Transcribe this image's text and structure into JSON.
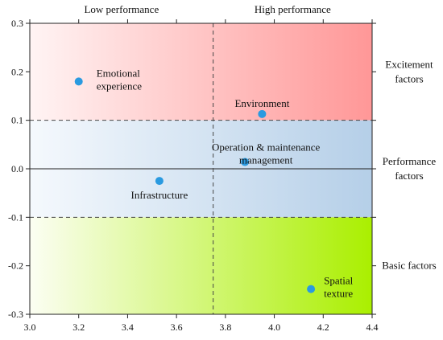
{
  "chart_data": {
    "type": "scatter",
    "title": "",
    "xlabel": "",
    "ylabel": "",
    "xlim": [
      3.0,
      4.4
    ],
    "ylim": [
      -0.3,
      0.3
    ],
    "x_ticks": [
      "3.0",
      "3.2",
      "3.4",
      "3.6",
      "3.8",
      "4.0",
      "4.2",
      "4.4"
    ],
    "y_ticks": [
      "0.3",
      "0.2",
      "0.1",
      "0.0",
      "-0.1",
      "-0.2",
      "-0.3"
    ],
    "x_divider": 3.75,
    "y_dividers": [
      0.1,
      -0.1
    ],
    "column_labels": [
      "Low performance",
      "High performance"
    ],
    "region_labels": [
      [
        "Excitement",
        "factors"
      ],
      [
        "Performance",
        "factors"
      ],
      [
        "Basic factors"
      ]
    ],
    "colors": {
      "point": "#2a9ae0",
      "excitement_low": "#fff4f4",
      "excitement_high": "#ff9797",
      "performance_low": "#f5f9fd",
      "performance_high": "#b5cfe8",
      "basic_low": "#fcfef3",
      "basic_high": "#aaef00"
    },
    "points": [
      {
        "label": [
          "Emotional",
          "experience"
        ],
        "x": 3.2,
        "y": 0.18
      },
      {
        "label": [
          "Environment"
        ],
        "x": 3.95,
        "y": 0.113
      },
      {
        "label": [
          "Operation & maintenance",
          "management"
        ],
        "x": 3.88,
        "y": 0.014
      },
      {
        "label": [
          "Infrastructure"
        ],
        "x": 3.53,
        "y": -0.025
      },
      {
        "label": [
          "Spatial",
          "texture"
        ],
        "x": 4.15,
        "y": -0.248
      }
    ]
  }
}
